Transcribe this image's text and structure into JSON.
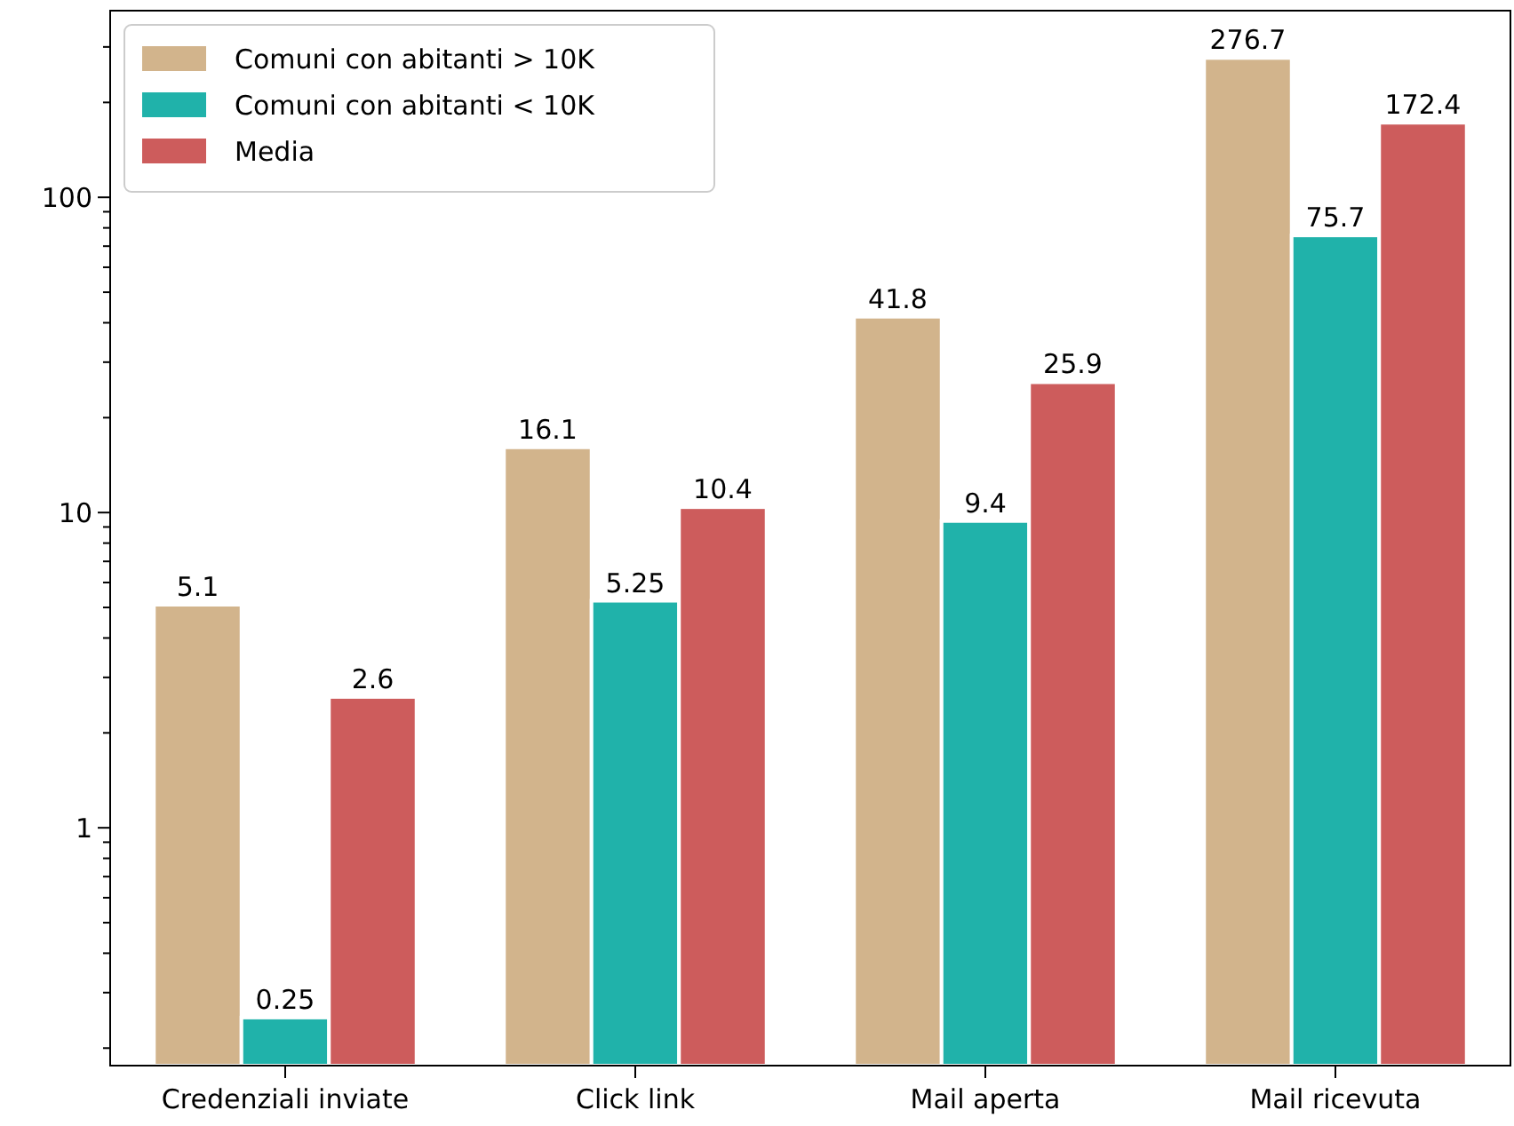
{
  "chart_data": {
    "type": "bar",
    "categories": [
      "Credenziali inviate",
      "Click link",
      "Mail aperta",
      "Mail ricevuta"
    ],
    "series": [
      {
        "name": "Comuni con abitanti > 10K",
        "color": "#d2b48c",
        "values": [
          5.1,
          16.1,
          41.8,
          276.7
        ]
      },
      {
        "name": "Comuni con abitanti < 10K",
        "color": "#20b2aa",
        "values": [
          0.25,
          5.25,
          9.4,
          75.7
        ]
      },
      {
        "name": "Media",
        "color": "#cd5c5c",
        "values": [
          2.6,
          10.4,
          25.9,
          172.4
        ]
      }
    ],
    "log": true,
    "ylim": [
      0.176,
      391
    ],
    "yticks": [
      {
        "value": 0.2,
        "label": null
      },
      {
        "value": 0.3,
        "label": null
      },
      {
        "value": 0.4,
        "label": null
      },
      {
        "value": 0.5,
        "label": null
      },
      {
        "value": 0.6,
        "label": null
      },
      {
        "value": 0.7,
        "label": null
      },
      {
        "value": 0.8,
        "label": null
      },
      {
        "value": 0.9,
        "label": null
      },
      1,
      {
        "value": 2,
        "label": null
      },
      {
        "value": 3,
        "label": null
      },
      {
        "value": 4,
        "label": null
      },
      {
        "value": 5,
        "label": null
      },
      {
        "value": 6,
        "label": null
      },
      {
        "value": 7,
        "label": null
      },
      {
        "value": 8,
        "label": null
      },
      {
        "value": 9,
        "label": null
      },
      10,
      {
        "value": 20,
        "label": null
      },
      {
        "value": 30,
        "label": null
      },
      {
        "value": 40,
        "label": null
      },
      {
        "value": 50,
        "label": null
      },
      {
        "value": 60,
        "label": null
      },
      {
        "value": 70,
        "label": null
      },
      {
        "value": 80,
        "label": null
      },
      {
        "value": 90,
        "label": null
      },
      100,
      {
        "value": 200,
        "label": null
      },
      {
        "value": 300,
        "label": null
      }
    ],
    "data_labels": true,
    "legend": "top left",
    "grid": false
  }
}
